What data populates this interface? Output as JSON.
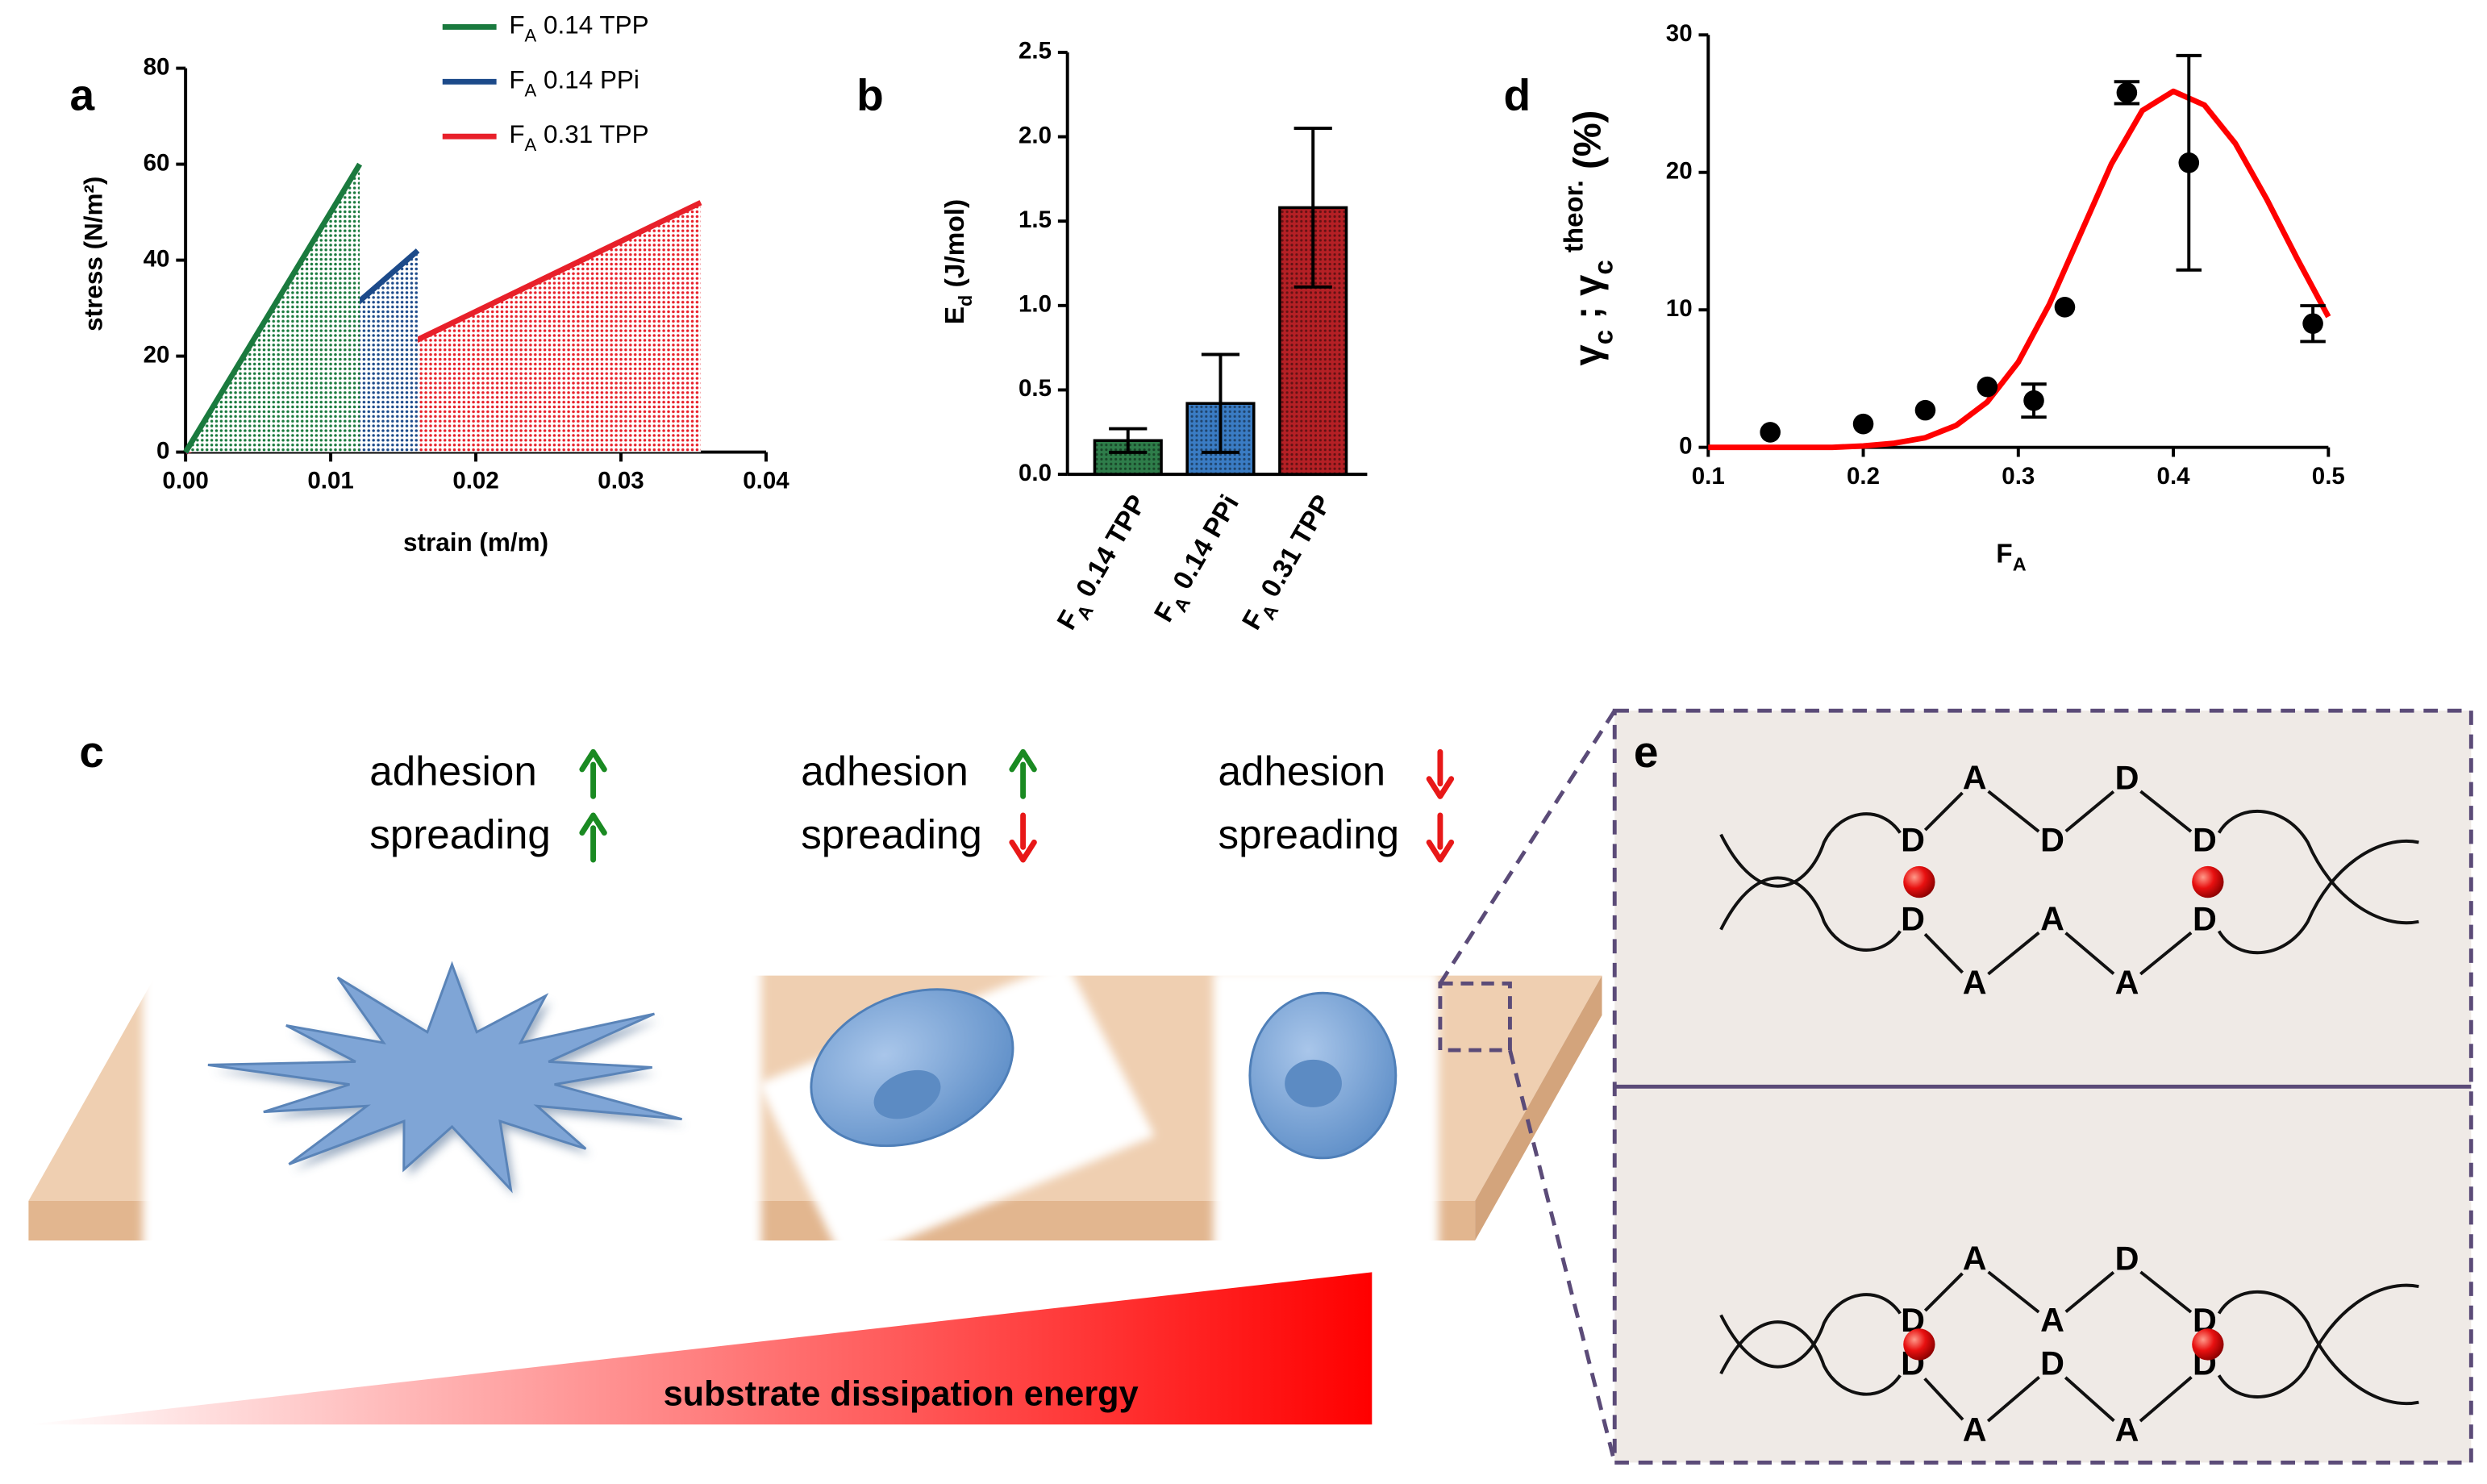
{
  "chart_data": [
    {
      "type": "line",
      "panel_label": "a",
      "x_label": "strain (m/m)",
      "y_label": "stress (N/m²)",
      "xlim": [
        0,
        0.04
      ],
      "xticks": [
        {
          "value": 0,
          "label": "0.00"
        },
        0.01,
        0.02,
        0.03,
        0.04
      ],
      "ylim": [
        0,
        80
      ],
      "yticks": [
        0,
        20,
        40,
        60,
        80
      ],
      "legend": "top",
      "area_fill": "dotted",
      "series": [
        {
          "name": "FA 0.14 TPP",
          "color": "#1a7a3e",
          "x": [
            0,
            0.012
          ],
          "values": [
            0,
            60
          ]
        },
        {
          "name": "FA 0.14 PPi",
          "color": "#1c4a8a",
          "x": [
            0,
            0.016
          ],
          "values": [
            0,
            42
          ]
        },
        {
          "name": "FA 0.31 TPP",
          "color": "#e8202a",
          "x": [
            0,
            0.0355
          ],
          "values": [
            0,
            52
          ]
        }
      ]
    },
    {
      "type": "bar",
      "panel_label": "b",
      "y_label": "Ed (J/mol)",
      "categories": [
        "FA 0.14 TPP",
        "FA 0.14 PPi",
        "FA 0.31 TPP"
      ],
      "values": [
        0.2,
        0.42,
        1.58
      ],
      "errors": [
        0.07,
        0.29,
        0.47
      ],
      "colors": [
        "#2e7d4a",
        "#3a7cc4",
        "#b52025"
      ],
      "ylim": [
        0,
        2.5
      ],
      "yticks": [
        {
          "value": 0,
          "label": "0.0"
        },
        0.5,
        {
          "value": 1,
          "label": "1.0"
        },
        1.5,
        {
          "value": 2,
          "label": "2.0"
        },
        2.5
      ]
    },
    {
      "type": "scatter",
      "panel_label": "d",
      "x_label": "FA",
      "y_label": "γc ; γc theor. (%)",
      "xlim": [
        0.1,
        0.5
      ],
      "xticks": [
        0.1,
        0.2,
        0.3,
        0.4,
        0.5
      ],
      "ylim": [
        0,
        30
      ],
      "yticks": [
        0,
        10,
        20,
        30
      ],
      "color": "#000000",
      "x": [
        0.14,
        0.2,
        0.24,
        0.28,
        0.31,
        0.33,
        0.37,
        0.41,
        0.49
      ],
      "values": [
        1.1,
        1.7,
        2.7,
        4.4,
        3.4,
        10.2,
        25.8,
        20.7,
        9.0
      ],
      "errors": [
        null,
        null,
        null,
        null,
        1.2,
        null,
        0.8,
        7.8,
        1.3
      ],
      "fit": {
        "color": "#ff0000",
        "x": [
          0.1,
          0.12,
          0.14,
          0.16,
          0.18,
          0.2,
          0.22,
          0.24,
          0.26,
          0.28,
          0.3,
          0.32,
          0.34,
          0.36,
          0.38,
          0.4,
          0.42,
          0.44,
          0.46,
          0.48,
          0.5
        ],
        "values": [
          0.0,
          0.0,
          0.0,
          0.0,
          0.0,
          0.1,
          0.3,
          0.7,
          1.6,
          3.3,
          6.2,
          10.4,
          15.5,
          20.6,
          24.5,
          25.9,
          24.9,
          22.1,
          18.1,
          13.7,
          9.5
        ]
      }
    }
  ],
  "panel_c": {
    "label": "c",
    "conditions": [
      [
        "adhesion",
        "spreading"
      ],
      [
        "adhesion",
        "spreading"
      ],
      [
        "adhesion",
        "spreading"
      ]
    ],
    "gradient_label": "substrate dissipation energy"
  },
  "panel_e": {
    "label": "e",
    "top_pair": {
      "upper": [
        "D",
        "A",
        "D",
        "D",
        "D"
      ],
      "lower": [
        "D",
        "A",
        "A",
        "A",
        "D"
      ]
    },
    "bottom_pair": {
      "upper": [
        "D",
        "A",
        "A",
        "D",
        "D"
      ],
      "lower": [
        "D",
        "A",
        "D",
        "A",
        "D"
      ]
    }
  }
}
